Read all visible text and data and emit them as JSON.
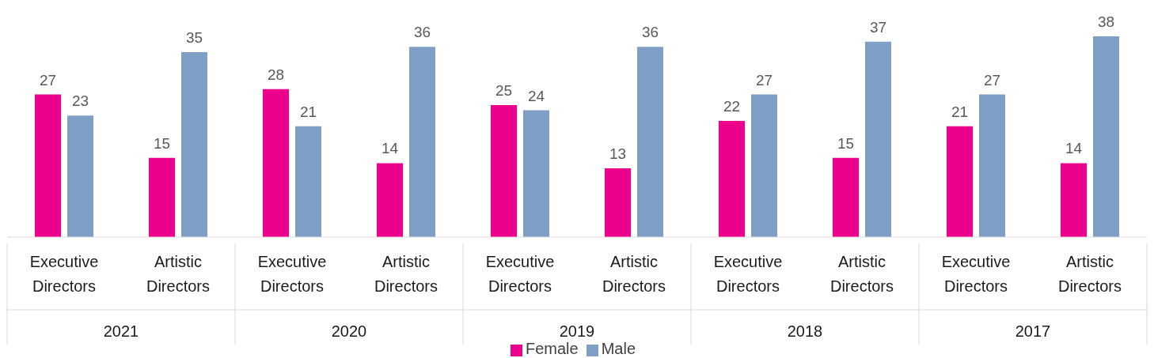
{
  "chart_data": {
    "type": "bar",
    "categories": [
      "Executive Directors",
      "Artistic Directors",
      "Executive Directors",
      "Artistic Directors",
      "Executive Directors",
      "Artistic Directors",
      "Executive Directors",
      "Artistic Directors",
      "Executive Directors",
      "Artistic Directors"
    ],
    "series": [
      {
        "name": "Female",
        "color": "#ec008c",
        "values": [
          27,
          15,
          28,
          14,
          25,
          13,
          22,
          15,
          21,
          14
        ]
      },
      {
        "name": "Male",
        "color": "#7f9fc6",
        "values": [
          23,
          35,
          21,
          36,
          24,
          36,
          27,
          37,
          27,
          38
        ]
      }
    ],
    "annotations": [
      "2021",
      "2020",
      "2019",
      "2018",
      "2017"
    ],
    "data_labels": true,
    "legend": "bottom",
    "grid": false
  }
}
